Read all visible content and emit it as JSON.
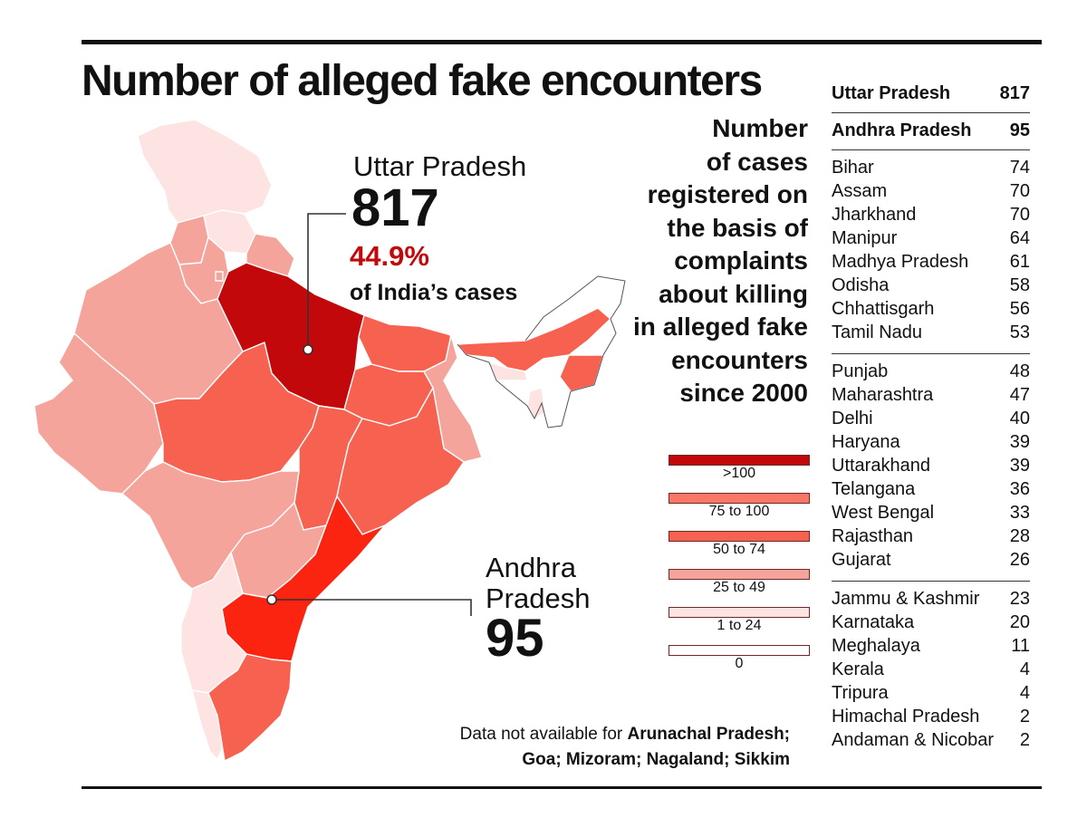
{
  "title": "Number of alleged fake encounters",
  "colors": {
    "above_100": "#c3080c",
    "75_to_100": "#f87766",
    "50_to_74": "#f76150",
    "25_to_49": "#f4a49b",
    "1_to_24": "#fde4e2",
    "zero": "#ffffff",
    "andhra_pradesh": "#fb2411"
  },
  "callouts": {
    "uttar_pradesh": {
      "name": "Uttar Pradesh",
      "value": "817",
      "percent": "44.9%",
      "sub": "of India’s cases"
    },
    "andhra_pradesh": {
      "name": "Andhra Pradesh",
      "value": "95"
    }
  },
  "description": [
    "Number",
    "of cases",
    "registered on",
    "the basis of",
    "complaints",
    "about killing",
    "in alleged fake",
    "encounters",
    "since 2000"
  ],
  "legend": [
    {
      "label": ">100",
      "color": "#c3080c"
    },
    {
      "label": "75 to 100",
      "color": "#f87766"
    },
    {
      "label": "50 to 74",
      "color": "#f76150"
    },
    {
      "label": "25 to 49",
      "color": "#f4a49b"
    },
    {
      "label": "1 to 24",
      "color": "#fde4e2"
    },
    {
      "label": "0",
      "color": "#ffffff"
    }
  ],
  "note": {
    "prefix": "Data not available for ",
    "states": "Arunachal Pradesh;",
    "line2": "Goa; Mizoram; Nagaland; Sikkim"
  },
  "table": [
    {
      "group": "top1",
      "bold": true,
      "rows": [
        {
          "state": "Uttar Pradesh",
          "value": 817
        }
      ]
    },
    {
      "group": "top2",
      "bold": true,
      "rows": [
        {
          "state": "Andhra Pradesh",
          "value": 95
        }
      ]
    },
    {
      "group": "50_to_74",
      "bold": false,
      "rows": [
        {
          "state": "Bihar",
          "value": 74
        },
        {
          "state": "Assam",
          "value": 70
        },
        {
          "state": "Jharkhand",
          "value": 70
        },
        {
          "state": "Manipur",
          "value": 64
        },
        {
          "state": "Madhya Pradesh",
          "value": 61
        },
        {
          "state": "Odisha",
          "value": 58
        },
        {
          "state": "Chhattisgarh",
          "value": 56
        },
        {
          "state": "Tamil Nadu",
          "value": 53
        }
      ]
    },
    {
      "group": "25_to_49",
      "bold": false,
      "rows": [
        {
          "state": "Punjab",
          "value": 48
        },
        {
          "state": "Maharashtra",
          "value": 47
        },
        {
          "state": "Delhi",
          "value": 40
        },
        {
          "state": "Haryana",
          "value": 39
        },
        {
          "state": "Uttarakhand",
          "value": 39
        },
        {
          "state": "Telangana",
          "value": 36
        },
        {
          "state": "West Bengal",
          "value": 33
        },
        {
          "state": "Rajasthan",
          "value": 28
        },
        {
          "state": "Gujarat",
          "value": 26
        }
      ]
    },
    {
      "group": "1_to_24",
      "bold": false,
      "rows": [
        {
          "state": "Jammu & Kashmir",
          "value": 23
        },
        {
          "state": "Karnataka",
          "value": 20
        },
        {
          "state": "Meghalaya",
          "value": 11
        },
        {
          "state": "Kerala",
          "value": 4
        },
        {
          "state": "Tripura",
          "value": 4
        },
        {
          "state": "Himachal Pradesh",
          "value": 2
        },
        {
          "state": "Andaman & Nicobar",
          "value": 2
        }
      ]
    }
  ]
}
